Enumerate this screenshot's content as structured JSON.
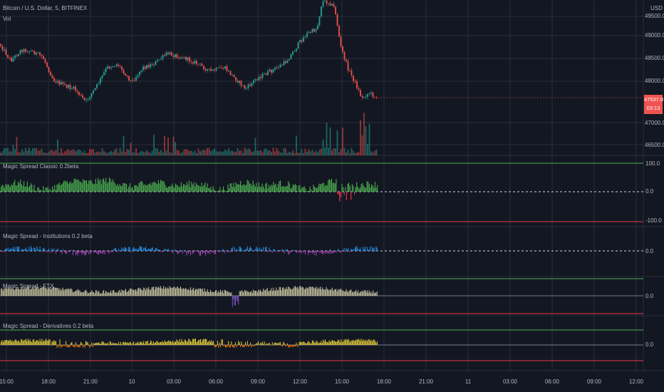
{
  "header": {
    "symbol": "Bitcoin / U.S. Dollar, 5, BITFINEX",
    "volume_label": "Vol",
    "currency": "USD"
  },
  "price_axis": {
    "ticks": [
      "49500.0",
      "49000.0",
      "48500.0",
      "48000.0",
      "47000.0",
      "46500.0"
    ],
    "last_price": "47537.0",
    "countdown": "03:13"
  },
  "panes": [
    {
      "title": "Magic Spread Classic 0.2beta",
      "scale": [
        "100.0",
        "0.0",
        "-100.0"
      ]
    },
    {
      "title": "Magic Spread - Institutions 0.2 beta",
      "scale": [
        "0.0"
      ]
    },
    {
      "title": "Magic Spread - FTX",
      "scale": [
        "0.0"
      ]
    },
    {
      "title": "Magic Spread - Derivatives 0.2 beta",
      "scale": [
        "0.0"
      ]
    }
  ],
  "time_axis": [
    "15:00",
    "18:00",
    "21:00",
    "10",
    "03:00",
    "06:00",
    "09:00",
    "12:00",
    "15:00",
    "18:00",
    "21:00",
    "11",
    "03:00",
    "06:00",
    "09:00",
    "12:00"
  ],
  "colors": {
    "background": "#131722",
    "up": "#26a69a",
    "down": "#ef5350",
    "green_hist": "#4caf50",
    "blue_hist": "#2196f3",
    "purple_hist": "#ab47bc",
    "ftx_hist": "#c8c4a0",
    "deriv_hist": "#e5cf3a",
    "deriv_neg": "#f57c00",
    "band_green": "#4caf50",
    "band_red": "#f23645",
    "grid": "#2a2e39"
  },
  "chart_data": {
    "type": "candlestick",
    "price_range": [
      46500,
      49500
    ],
    "last_price": 47537.0
  }
}
